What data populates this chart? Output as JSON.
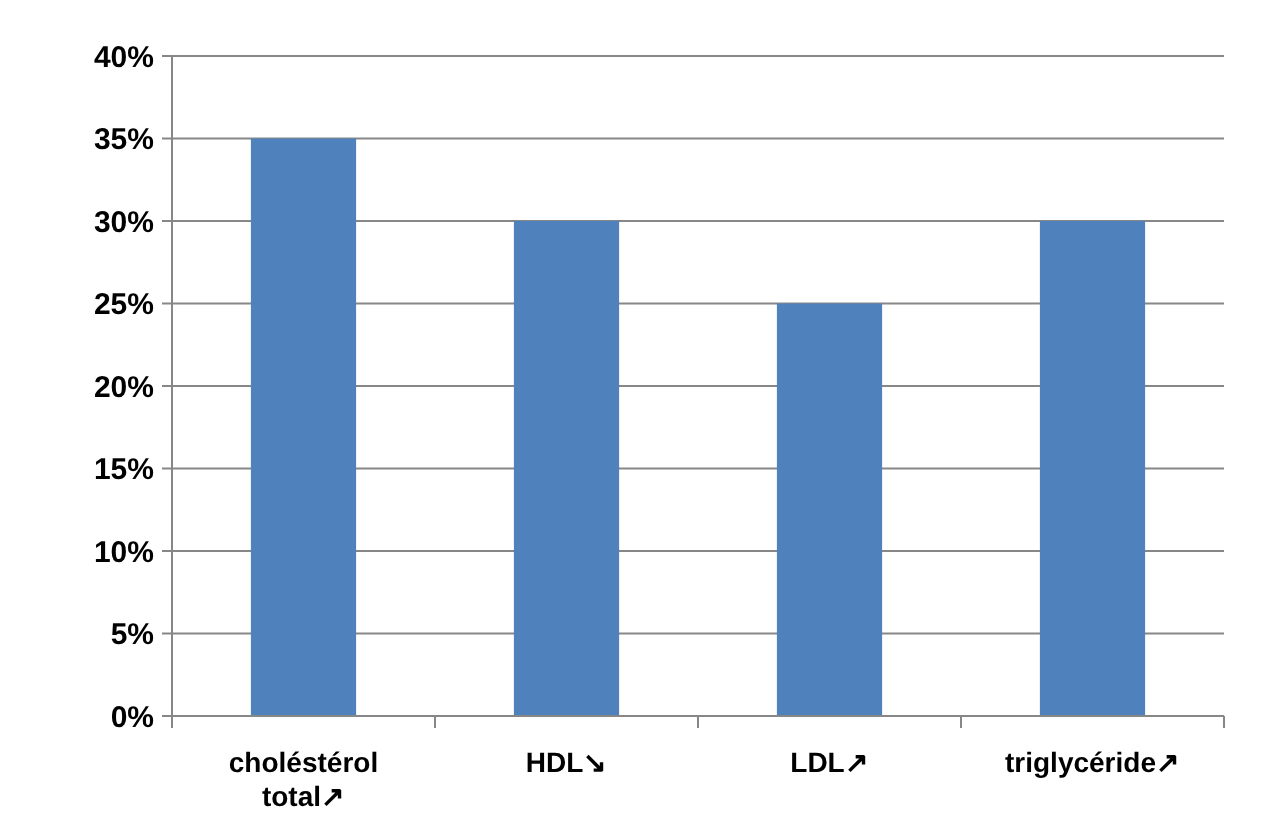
{
  "chart_data": {
    "type": "bar",
    "categories": [
      "choléstérol total↗",
      "HDL↘",
      "LDL↗",
      "triglycéride↗"
    ],
    "values": [
      35,
      30,
      25,
      30
    ],
    "color": "#4f81bd",
    "ylim": [
      0,
      40
    ],
    "yticks": [
      {
        "value": 0,
        "label": "0%"
      },
      {
        "value": 5,
        "label": "5%"
      },
      {
        "value": 10,
        "label": "10%"
      },
      {
        "value": 15,
        "label": "15%"
      },
      {
        "value": 20,
        "label": "20%"
      },
      {
        "value": 25,
        "label": "25%"
      },
      {
        "value": 30,
        "label": "30%"
      },
      {
        "value": 35,
        "label": "35%"
      },
      {
        "value": 40,
        "label": "40%"
      }
    ],
    "grid": "y"
  }
}
